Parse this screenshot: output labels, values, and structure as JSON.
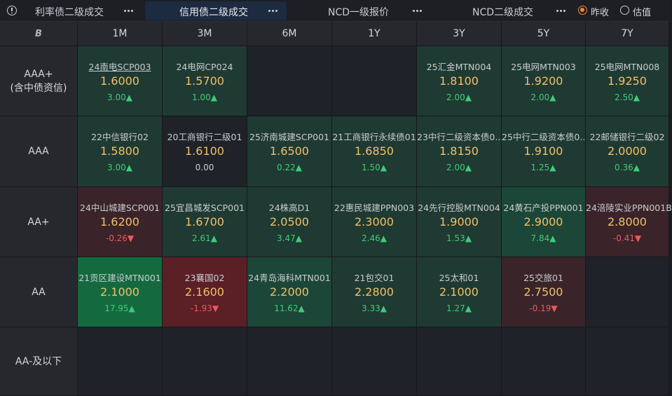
{
  "tabs": [
    {
      "label": "利率债二级成交"
    },
    {
      "label": "信用债二级成交"
    },
    {
      "label": "NCD一级报价"
    },
    {
      "label": "NCD二级成交"
    }
  ],
  "radios": [
    {
      "label": "昨收",
      "selected": true
    },
    {
      "label": "估值",
      "selected": false
    }
  ],
  "corner_label": "B",
  "columns": [
    "1M",
    "3M",
    "6M",
    "1Y",
    "3Y",
    "5Y",
    "7Y"
  ],
  "rows": [
    {
      "label_line1": "AAA+",
      "label_line2": "(含中债资信)"
    },
    {
      "label_line1": "AAA",
      "label_line2": ""
    },
    {
      "label_line1": "AA+",
      "label_line2": ""
    },
    {
      "label_line1": "AA",
      "label_line2": ""
    },
    {
      "label_line1": "AA-及以下",
      "label_line2": ""
    }
  ],
  "cells": [
    [
      {
        "name": "24南电SCP003",
        "value": "1.6000",
        "change": "3.00▲",
        "dir": "up"
      },
      {
        "name": "24电网CP024",
        "value": "1.5700",
        "change": "1.00▲",
        "dir": "up"
      },
      null,
      null,
      {
        "name": "25汇金MTN004",
        "value": "1.8100",
        "change": "2.00▲",
        "dir": "up"
      },
      {
        "name": "25电网MTN003",
        "value": "1.9200",
        "change": "2.00▲",
        "dir": "up"
      },
      {
        "name": "25电网MTN008",
        "value": "1.9250",
        "change": "2.50▲",
        "dir": "up"
      }
    ],
    [
      {
        "name": "22中信银行02",
        "value": "1.5800",
        "change": "3.00▲",
        "dir": "up"
      },
      {
        "name": "20工商银行二级01",
        "value": "1.6100",
        "change": "0.00",
        "dir": "flat"
      },
      {
        "name": "25济南城建SCP001",
        "value": "1.6500",
        "change": "0.22▲",
        "dir": "up"
      },
      {
        "name": "21工商银行永续债01",
        "value": "1.6850",
        "change": "1.50▲",
        "dir": "up"
      },
      {
        "name": "23中行二级资本债0...",
        "value": "1.8150",
        "change": "2.00▲",
        "dir": "up"
      },
      {
        "name": "25中行二级资本债0...",
        "value": "1.9100",
        "change": "1.25▲",
        "dir": "up"
      },
      {
        "name": "22邮储银行二级02",
        "value": "2.0000",
        "change": "0.36▲",
        "dir": "up"
      }
    ],
    [
      {
        "name": "24中山城建SCP001",
        "value": "1.6200",
        "change": "-0.26▼",
        "dir": "down"
      },
      {
        "name": "25宜昌城发SCP001",
        "value": "1.6700",
        "change": "2.61▲",
        "dir": "up"
      },
      {
        "name": "24株高D1",
        "value": "2.0500",
        "change": "3.47▲",
        "dir": "up"
      },
      {
        "name": "22惠民城建PPN003",
        "value": "2.3000",
        "change": "2.46▲",
        "dir": "up"
      },
      {
        "name": "24先行控股MTN004",
        "value": "1.9000",
        "change": "1.53▲",
        "dir": "up"
      },
      {
        "name": "24黄石产投PPN001",
        "value": "2.9000",
        "change": "7.84▲",
        "dir": "up"
      },
      {
        "name": "24涪陵实业PPN001B",
        "value": "2.8000",
        "change": "-0.41▼",
        "dir": "down"
      }
    ],
    [
      {
        "name": "21贡区建设MTN001",
        "value": "2.1000",
        "change": "17.95▲",
        "dir": "up"
      },
      {
        "name": "23襄国02",
        "value": "2.1600",
        "change": "-1.93▼",
        "dir": "down"
      },
      {
        "name": "24青岛海科MTN001",
        "value": "2.2000",
        "change": "11.62▲",
        "dir": "up"
      },
      {
        "name": "21包交01",
        "value": "2.2800",
        "change": "3.33▲",
        "dir": "up"
      },
      {
        "name": "25太和01",
        "value": "2.1000",
        "change": "1.27▲",
        "dir": "up"
      },
      {
        "name": "25交旅01",
        "value": "2.7500",
        "change": "-0.19▼",
        "dir": "down"
      },
      null
    ],
    [
      null,
      null,
      null,
      null,
      null,
      null,
      null
    ]
  ],
  "colors": {
    "up": "#3fcc7a",
    "down": "#f2575d",
    "value": "#f0c06a",
    "radio_selected": "#f2873a"
  }
}
